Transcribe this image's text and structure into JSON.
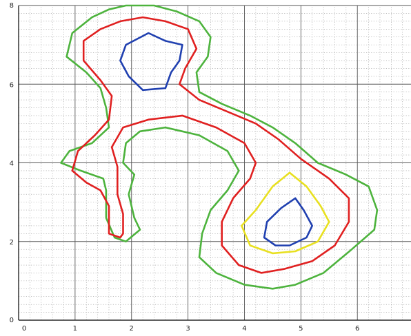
{
  "chart_data": {
    "type": "line",
    "title": "",
    "xlabel": "",
    "ylabel": "",
    "xlim": [
      0,
      6.95
    ],
    "ylim": [
      0,
      8
    ],
    "x_ticks": [
      "0",
      "1",
      "2",
      "3",
      "4",
      "5",
      "6"
    ],
    "y_ticks": [
      "0",
      "2",
      "4",
      "6",
      "8"
    ],
    "grid": {
      "major": true,
      "minor": true,
      "minor_step": 0.2
    },
    "colors": {
      "axis": "#000000",
      "major_grid": "#555555",
      "minor_grid": "#999999"
    },
    "series": [
      {
        "color": "#4db33d",
        "closed": true,
        "points": [
          [
            1.9,
            8.0
          ],
          [
            2.4,
            8.0
          ],
          [
            2.8,
            7.85
          ],
          [
            3.2,
            7.6
          ],
          [
            3.4,
            7.2
          ],
          [
            3.35,
            6.7
          ],
          [
            3.15,
            6.3
          ],
          [
            3.2,
            5.8
          ],
          [
            3.6,
            5.5
          ],
          [
            4.1,
            5.2
          ],
          [
            4.5,
            4.9
          ],
          [
            4.9,
            4.5
          ],
          [
            5.3,
            4.0
          ],
          [
            5.8,
            3.7
          ],
          [
            6.2,
            3.4
          ],
          [
            6.35,
            2.8
          ],
          [
            6.3,
            2.3
          ],
          [
            5.9,
            1.8
          ],
          [
            5.4,
            1.2
          ],
          [
            4.9,
            0.9
          ],
          [
            4.5,
            0.8
          ],
          [
            4.0,
            0.9
          ],
          [
            3.5,
            1.2
          ],
          [
            3.2,
            1.6
          ],
          [
            3.25,
            2.2
          ],
          [
            3.4,
            2.8
          ],
          [
            3.7,
            3.3
          ],
          [
            3.9,
            3.8
          ],
          [
            3.7,
            4.3
          ],
          [
            3.2,
            4.7
          ],
          [
            2.6,
            4.9
          ],
          [
            2.15,
            4.8
          ],
          [
            1.9,
            4.5
          ],
          [
            1.85,
            4.0
          ],
          [
            2.05,
            3.7
          ],
          [
            1.95,
            3.2
          ],
          [
            2.05,
            2.6
          ],
          [
            2.15,
            2.3
          ],
          [
            1.9,
            2.0
          ],
          [
            1.7,
            2.1
          ],
          [
            1.55,
            2.6
          ],
          [
            1.55,
            3.3
          ],
          [
            1.5,
            3.6
          ],
          [
            1.1,
            3.8
          ],
          [
            0.75,
            4.0
          ],
          [
            0.9,
            4.3
          ],
          [
            1.3,
            4.5
          ],
          [
            1.6,
            4.9
          ],
          [
            1.55,
            5.4
          ],
          [
            1.45,
            5.9
          ],
          [
            1.2,
            6.3
          ],
          [
            0.85,
            6.7
          ],
          [
            0.95,
            7.3
          ],
          [
            1.3,
            7.7
          ],
          [
            1.6,
            7.9
          ],
          [
            1.9,
            8.0
          ]
        ]
      },
      {
        "color": "#e02020",
        "closed": true,
        "points": [
          [
            2.2,
            7.7
          ],
          [
            2.6,
            7.6
          ],
          [
            3.0,
            7.4
          ],
          [
            3.15,
            6.9
          ],
          [
            2.95,
            6.4
          ],
          [
            2.85,
            6.0
          ],
          [
            3.2,
            5.6
          ],
          [
            3.7,
            5.3
          ],
          [
            4.2,
            5.0
          ],
          [
            4.6,
            4.6
          ],
          [
            5.0,
            4.1
          ],
          [
            5.5,
            3.6
          ],
          [
            5.85,
            3.1
          ],
          [
            5.85,
            2.5
          ],
          [
            5.6,
            1.9
          ],
          [
            5.2,
            1.5
          ],
          [
            4.7,
            1.3
          ],
          [
            4.3,
            1.2
          ],
          [
            3.9,
            1.4
          ],
          [
            3.6,
            1.9
          ],
          [
            3.6,
            2.5
          ],
          [
            3.8,
            3.1
          ],
          [
            4.1,
            3.6
          ],
          [
            4.2,
            4.0
          ],
          [
            4.0,
            4.5
          ],
          [
            3.5,
            4.9
          ],
          [
            2.9,
            5.2
          ],
          [
            2.3,
            5.1
          ],
          [
            1.85,
            4.9
          ],
          [
            1.65,
            4.4
          ],
          [
            1.75,
            3.9
          ],
          [
            1.75,
            3.2
          ],
          [
            1.85,
            2.7
          ],
          [
            1.85,
            2.2
          ],
          [
            1.8,
            2.1
          ],
          [
            1.6,
            2.2
          ],
          [
            1.6,
            2.9
          ],
          [
            1.45,
            3.3
          ],
          [
            1.2,
            3.5
          ],
          [
            0.95,
            3.8
          ],
          [
            1.05,
            4.3
          ],
          [
            1.35,
            4.7
          ],
          [
            1.6,
            5.1
          ],
          [
            1.65,
            5.7
          ],
          [
            1.45,
            6.1
          ],
          [
            1.15,
            6.6
          ],
          [
            1.15,
            7.1
          ],
          [
            1.45,
            7.4
          ],
          [
            1.8,
            7.6
          ],
          [
            2.2,
            7.7
          ]
        ]
      },
      {
        "color": "#2040b0",
        "closed": true,
        "points": [
          [
            2.3,
            7.3
          ],
          [
            2.6,
            7.1
          ],
          [
            2.9,
            7.0
          ],
          [
            2.85,
            6.6
          ],
          [
            2.7,
            6.3
          ],
          [
            2.6,
            5.9
          ],
          [
            2.2,
            5.85
          ],
          [
            1.95,
            6.2
          ],
          [
            1.8,
            6.6
          ],
          [
            1.9,
            7.0
          ],
          [
            2.3,
            7.3
          ]
        ]
      },
      {
        "color": "#e8e020",
        "closed": true,
        "points": [
          [
            4.8,
            3.75
          ],
          [
            5.1,
            3.4
          ],
          [
            5.35,
            2.9
          ],
          [
            5.5,
            2.5
          ],
          [
            5.3,
            2.0
          ],
          [
            4.9,
            1.75
          ],
          [
            4.5,
            1.7
          ],
          [
            4.1,
            1.9
          ],
          [
            3.95,
            2.4
          ],
          [
            4.2,
            2.8
          ],
          [
            4.5,
            3.4
          ],
          [
            4.8,
            3.75
          ]
        ]
      },
      {
        "color": "#2040b0",
        "closed": true,
        "points": [
          [
            4.9,
            3.1
          ],
          [
            5.05,
            2.8
          ],
          [
            5.2,
            2.4
          ],
          [
            5.1,
            2.1
          ],
          [
            4.8,
            1.9
          ],
          [
            4.55,
            1.9
          ],
          [
            4.35,
            2.1
          ],
          [
            4.4,
            2.5
          ],
          [
            4.65,
            2.85
          ],
          [
            4.9,
            3.1
          ]
        ]
      }
    ]
  }
}
